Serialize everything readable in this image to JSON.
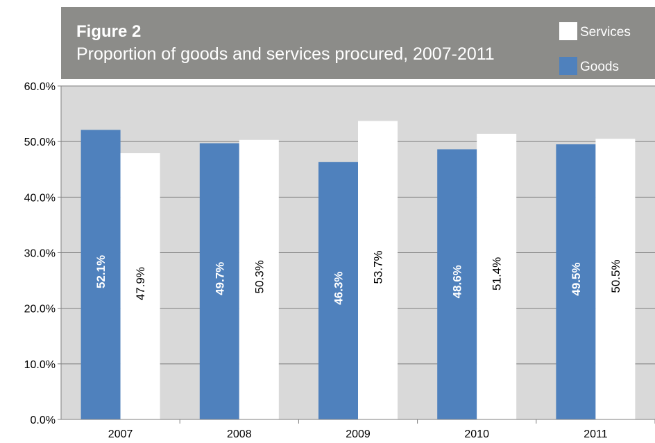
{
  "header_fragment": "Figure 2 goods and services procured",
  "figure": {
    "label": "Figure 2",
    "title": "Proportion of goods and services procured, 2007-2011"
  },
  "legend": {
    "items": [
      {
        "label": "Services",
        "color": "#ffffff"
      },
      {
        "label": "Goods",
        "color": "#4f81bd"
      }
    ]
  },
  "colors": {
    "plot_background": "#d9d9d9",
    "title_background": "#8c8c89",
    "goods": "#4f81bd",
    "services": "#ffffff",
    "gridline": "#7f7f7f"
  },
  "chart_data": {
    "type": "bar",
    "categories": [
      "2007",
      "2008",
      "2009",
      "2010",
      "2011"
    ],
    "series": [
      {
        "name": "Goods",
        "values": [
          52.1,
          49.7,
          46.3,
          48.6,
          49.5
        ],
        "labels": [
          "52.1%",
          "49.7%",
          "46.3%",
          "48.6%",
          "49.5%"
        ]
      },
      {
        "name": "Services",
        "values": [
          47.9,
          50.3,
          53.7,
          51.4,
          50.5
        ],
        "labels": [
          "47.9%",
          "50.3%",
          "53.7%",
          "51.4%",
          "50.5%"
        ]
      }
    ],
    "ylim": [
      0,
      60
    ],
    "yticks": [
      "0.0%",
      "10.0%",
      "20.0%",
      "30.0%",
      "40.0%",
      "50.0%",
      "60.0%"
    ],
    "ytick_values": [
      0,
      10,
      20,
      30,
      40,
      50,
      60
    ],
    "grid": true,
    "legend_position": "top-right"
  }
}
